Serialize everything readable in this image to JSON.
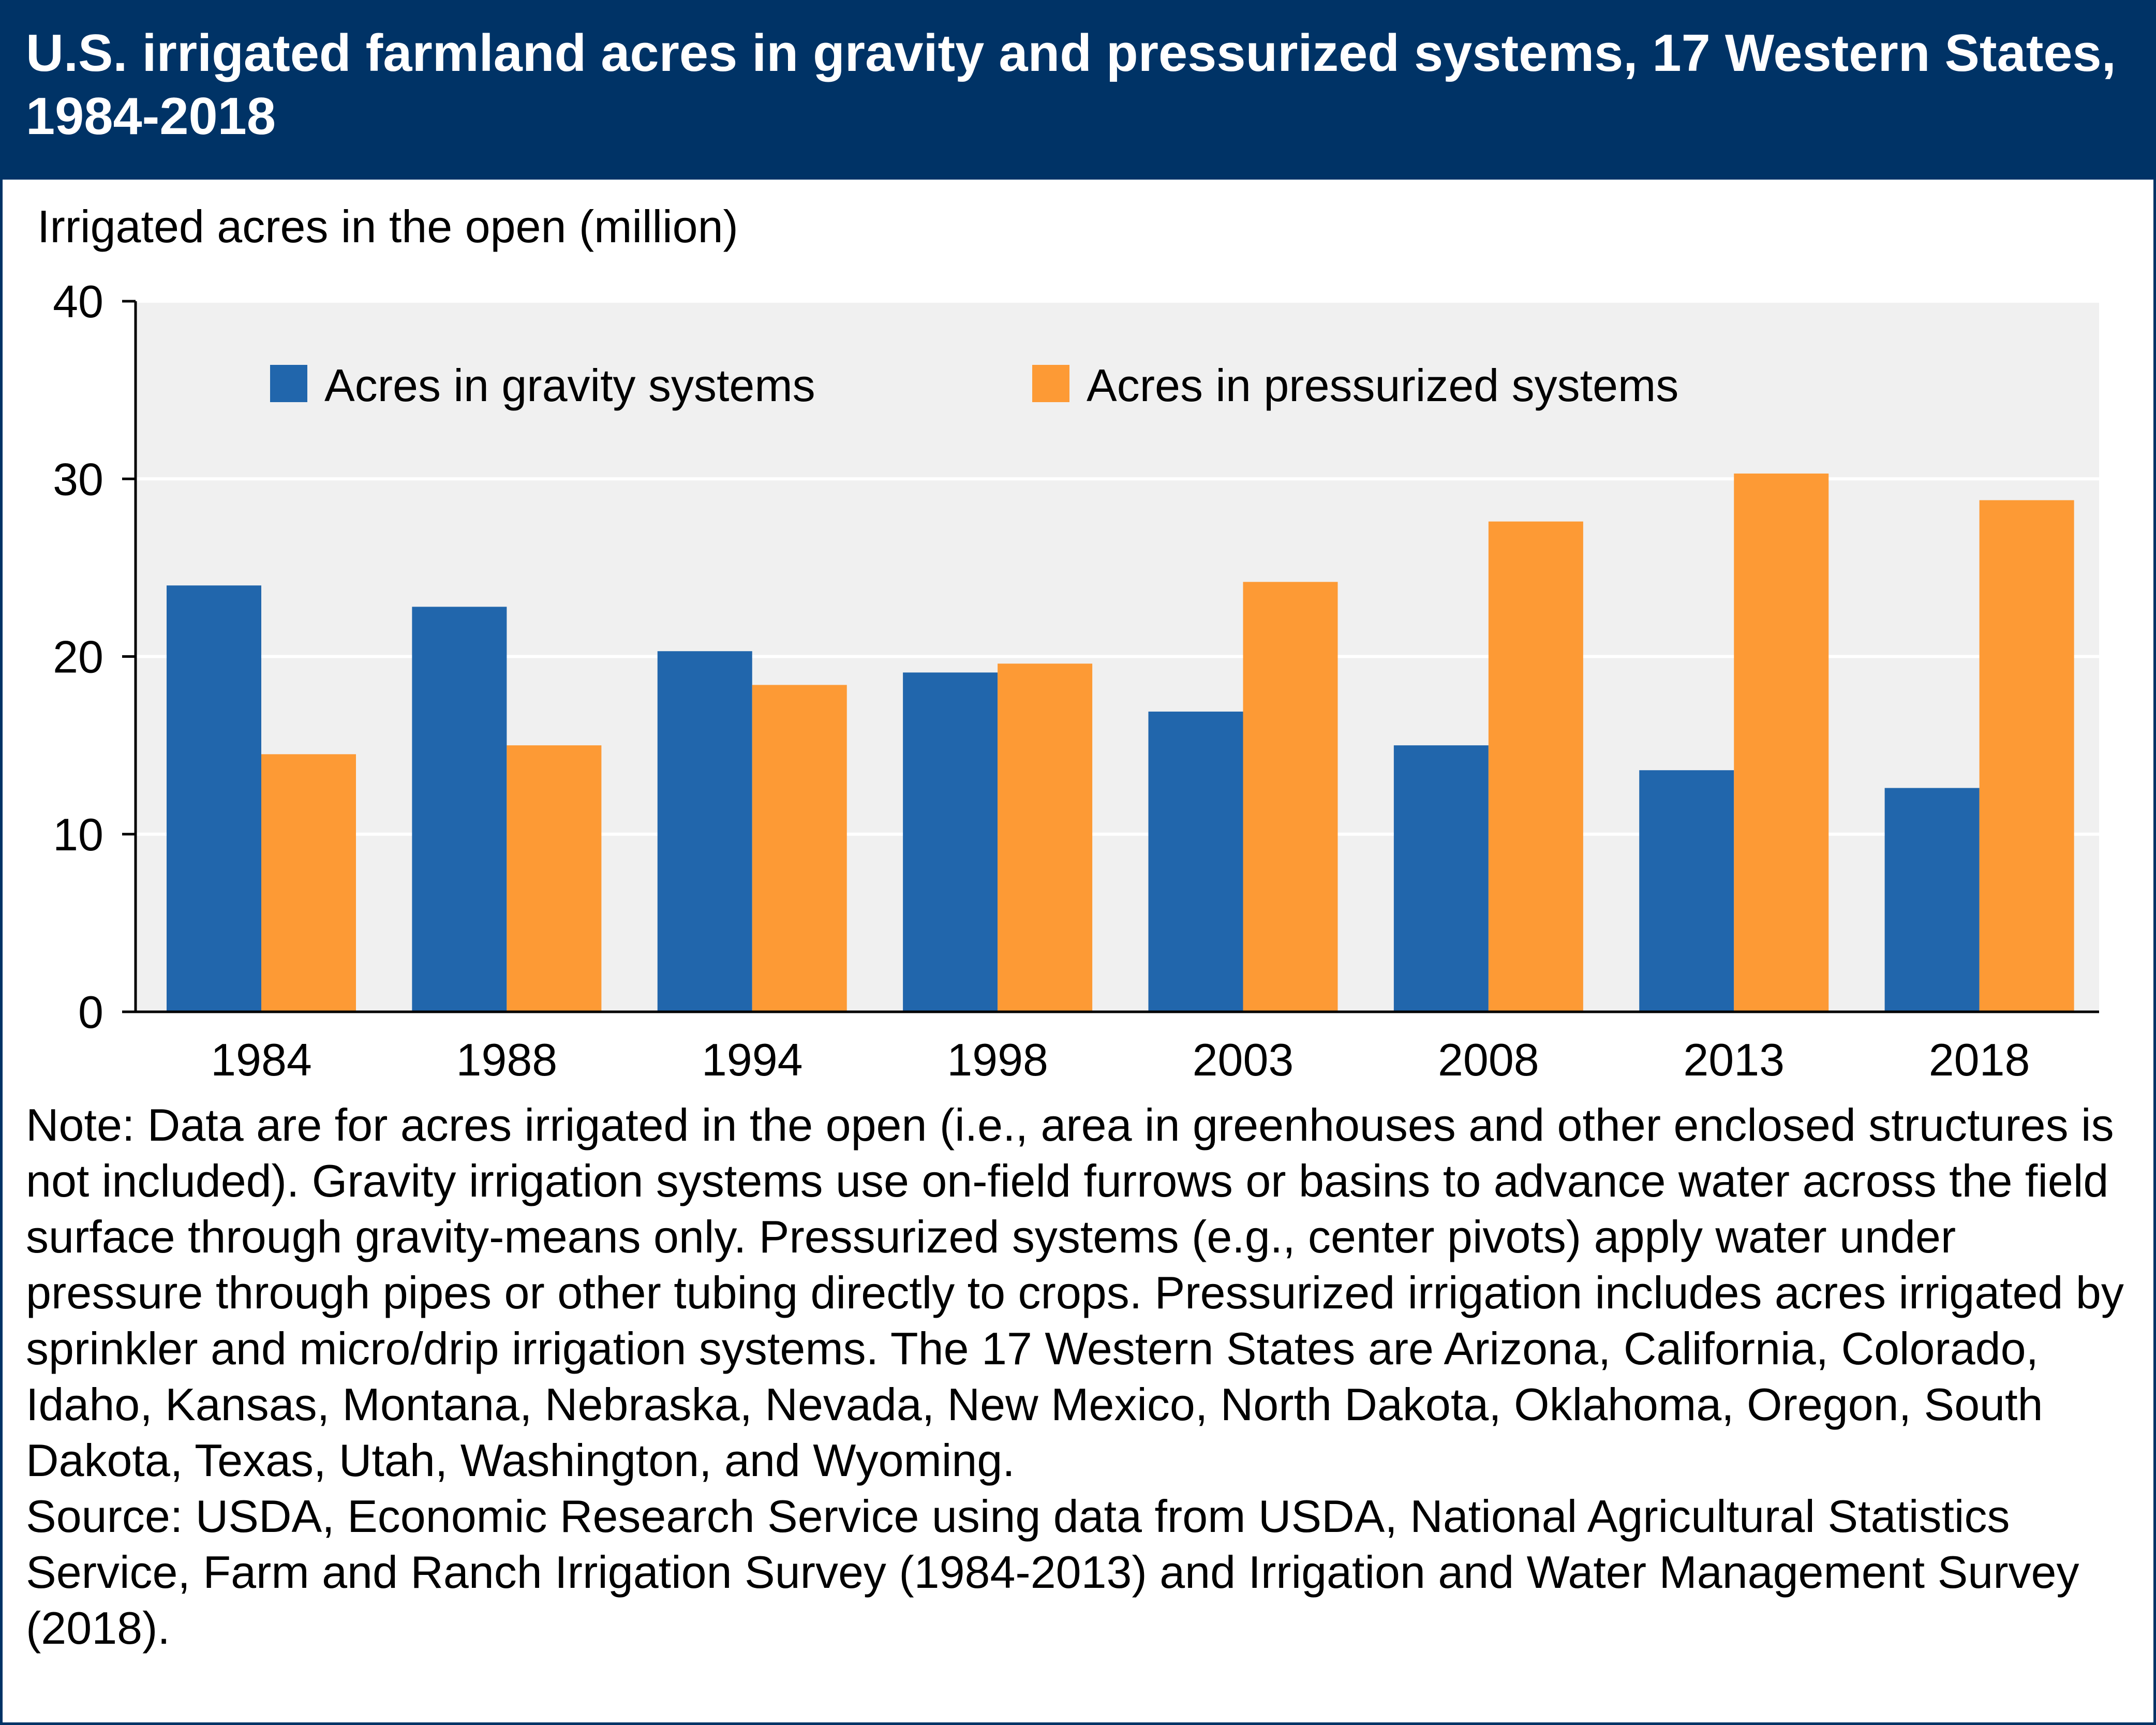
{
  "colors": {
    "header_bg": "#003366",
    "plot_bg": "#f0f0f0",
    "gravity": "#2166ac",
    "pressurized": "#fd9a35",
    "gridline": "#ffffff",
    "axis": "#000000"
  },
  "chart_data": {
    "type": "bar",
    "title": "U.S. irrigated farmland acres in gravity and pressurized systems, 17 Western States, 1984-2018",
    "ylabel": "Irrigated acres in the open (million)",
    "xlabel": "",
    "ylim": [
      0,
      40
    ],
    "yticks": [
      "0",
      "10",
      "20",
      "30",
      "40"
    ],
    "grid": true,
    "legend_position": "top",
    "categories": [
      "1984",
      "1988",
      "1994",
      "1998",
      "2003",
      "2008",
      "2013",
      "2018"
    ],
    "series": [
      {
        "name": "Acres in gravity systems",
        "values": [
          24.0,
          22.8,
          20.3,
          19.1,
          16.9,
          15.0,
          13.6,
          12.6
        ]
      },
      {
        "name": "Acres in pressurized systems",
        "values": [
          14.5,
          15.0,
          18.4,
          19.6,
          24.2,
          27.6,
          30.3,
          28.8
        ]
      }
    ]
  },
  "notes": {
    "note": "Note: Data are for acres irrigated in the open (i.e., area in greenhouses and other enclosed structures is not included). Gravity irrigation systems use on-field furrows or basins to advance water across the field surface through gravity-means only. Pressurized systems (e.g., center pivots) apply water under pressure through pipes or other tubing directly to crops. Pressurized irrigation includes acres irrigated by sprinkler and micro/drip irrigation systems. The 17 Western States are Arizona, California, Colorado, Idaho, Kansas, Montana, Nebraska, Nevada, New Mexico, North Dakota, Oklahoma, Oregon, South Dakota, Texas, Utah, Washington, and Wyoming.",
    "source": "Source: USDA, Economic Research Service using data from USDA, National Agricultural Statistics Service, Farm and Ranch Irrigation Survey (1984-2013) and Irrigation and Water Management Survey (2018)."
  }
}
